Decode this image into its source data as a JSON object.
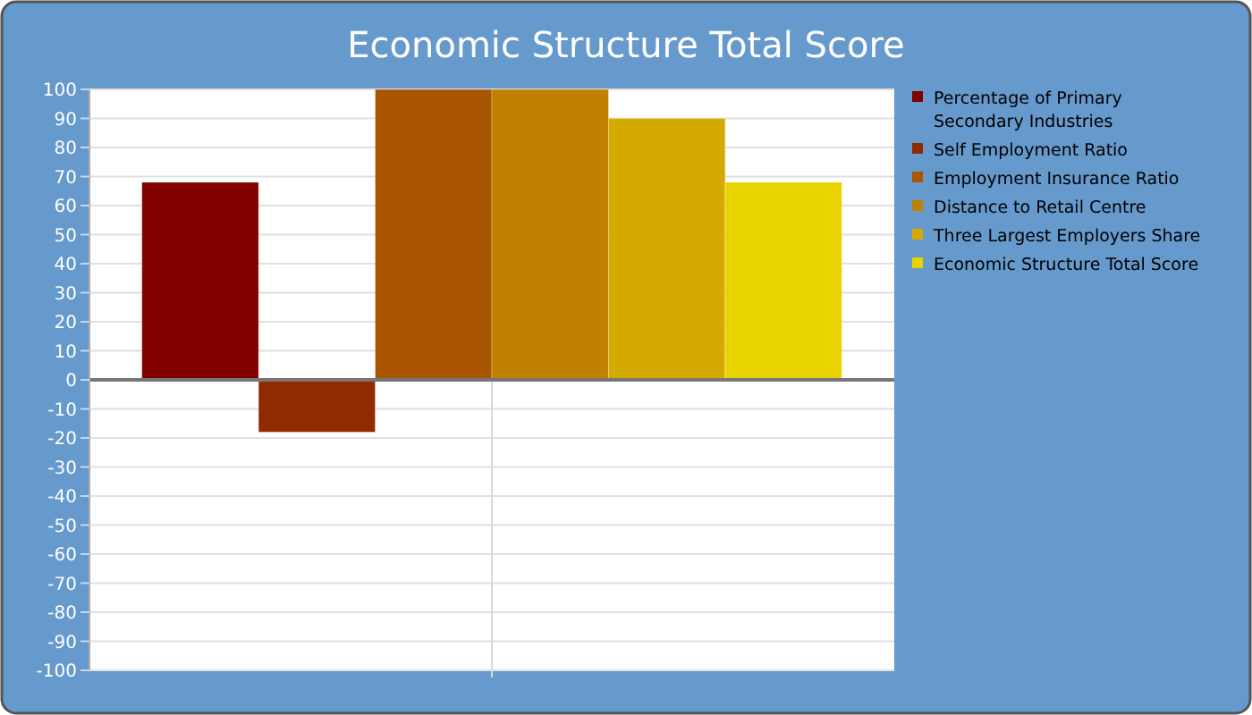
{
  "chart_data": {
    "type": "bar",
    "title": "Economic Structure Total Score",
    "categories": [
      null
    ],
    "series": [
      {
        "name": "Percentage of Primary Secondary Industries",
        "color": "#800000",
        "values": [
          68
        ]
      },
      {
        "name": "Self Employment Ratio",
        "color": "#902a00",
        "values": [
          -18
        ]
      },
      {
        "name": "Employment Insurance Ratio",
        "color": "#aa5500",
        "values": [
          100
        ]
      },
      {
        "name": "Distance to Retail Centre",
        "color": "#c08000",
        "values": [
          100
        ]
      },
      {
        "name": "Three Largest Employers Share",
        "color": "#d4aa00",
        "values": [
          90
        ]
      },
      {
        "name": "Economic Structure Total Score",
        "color": "#e8d200",
        "values": [
          68
        ]
      }
    ],
    "ylim": [
      -100,
      100
    ],
    "yticks": [
      -100,
      -90,
      -80,
      -70,
      -60,
      -50,
      -40,
      -30,
      -20,
      -10,
      0,
      10,
      20,
      30,
      40,
      50,
      60,
      70,
      80,
      90,
      100
    ],
    "grid": true,
    "legend": "top right"
  }
}
